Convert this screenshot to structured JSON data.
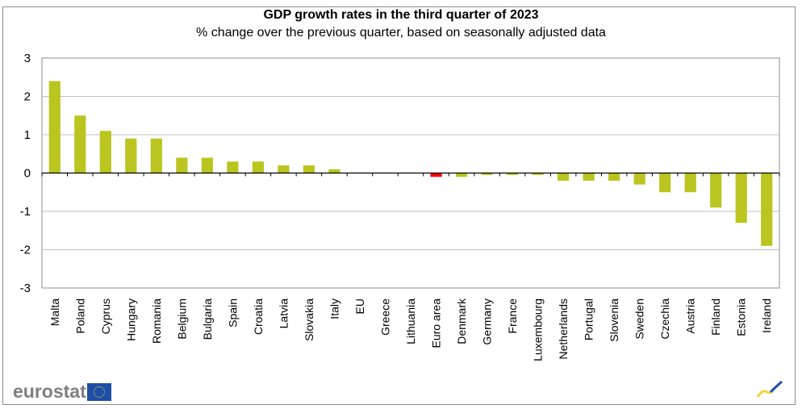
{
  "chart_data": {
    "type": "bar",
    "title": "GDP growth rates in the third quarter of 2023",
    "subtitle": "% change over the previous quarter, based on seasonally adjusted data",
    "xlabel": "",
    "ylabel": "",
    "ylim": [
      -3,
      3
    ],
    "yticks": [
      3,
      2,
      1,
      0,
      -1,
      -2,
      -3
    ],
    "grid": true,
    "categories": [
      "Malta",
      "Poland",
      "Cyprus",
      "Hungary",
      "Romania",
      "Belgium",
      "Bulgaria",
      "Spain",
      "Croatia",
      "Latvia",
      "Slovakia",
      "Italy",
      "EU",
      "Greece",
      "Lithuania",
      "Euro area",
      "Denmark",
      "Germany",
      "France",
      "Luxembourg",
      "Netherlands",
      "Portugal",
      "Slovenia",
      "Sweden",
      "Czechia",
      "Austria",
      "Finland",
      "Estonia",
      "Ireland"
    ],
    "values": [
      2.4,
      1.5,
      1.1,
      0.9,
      0.9,
      0.4,
      0.4,
      0.3,
      0.3,
      0.2,
      0.2,
      0.1,
      0.0,
      0.0,
      0.0,
      -0.1,
      -0.1,
      -0.05,
      -0.05,
      -0.05,
      -0.2,
      -0.2,
      -0.2,
      -0.3,
      -0.5,
      -0.5,
      -0.9,
      -1.3,
      -1.9
    ],
    "highlight": "Euro area",
    "colors": {
      "bar": "#bac51f",
      "highlight": "#ff0000",
      "grid": "#bfbfbf",
      "axis": "#000000"
    }
  },
  "branding": {
    "logo_text": "eurostat"
  }
}
